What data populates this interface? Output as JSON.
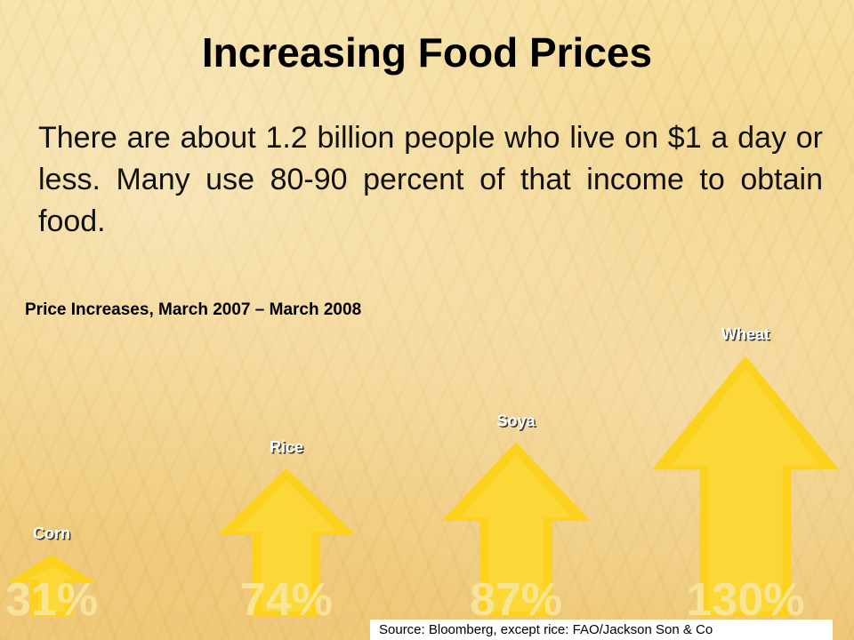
{
  "slide": {
    "title": "Increasing Food Prices",
    "body": "There are about 1.2 billion people who live on $1 a day or less. Many use 80-90 percent of that income to obtain food.",
    "source": "Source: Bloomberg, except rice: FAO/Jackson Son & Co"
  },
  "colors": {
    "arrow": "#fcd21e",
    "arrow_light": "#fde26a",
    "value_text": "#f8e6a0",
    "label_text": "#ffffff",
    "label_shadow": "#3a3a3a"
  },
  "chart_data": {
    "type": "bar",
    "title": "Price Increases, March 2007 – March 2008",
    "categories": [
      "Corn",
      "Rice",
      "Soya",
      "Wheat"
    ],
    "values": [
      31,
      74,
      87,
      130
    ],
    "value_labels": [
      "31%",
      "74%",
      "87%",
      "130%"
    ],
    "unit": "%"
  }
}
